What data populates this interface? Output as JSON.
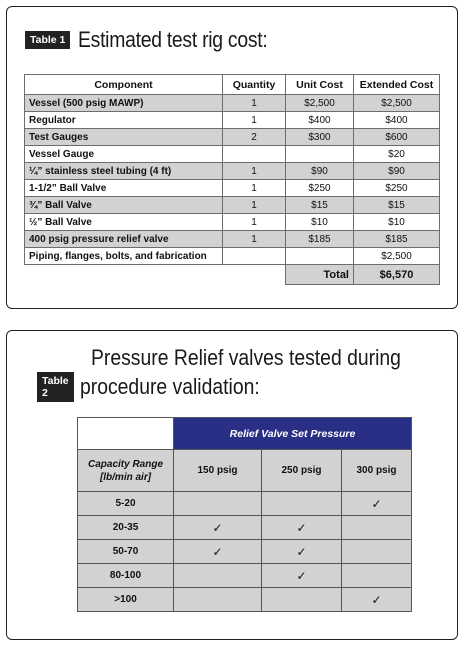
{
  "table1": {
    "tag": "Table 1",
    "title": "Estimated test rig cost:",
    "headers": [
      "Component",
      "Quantity",
      "Unit Cost",
      "Extended Cost"
    ],
    "rows": [
      {
        "component": "Vessel (500 psig MAWP)",
        "quantity": "1",
        "unit": "$2,500",
        "extended": "$2,500"
      },
      {
        "component": "Regulator",
        "quantity": "1",
        "unit": "$400",
        "extended": "$400"
      },
      {
        "component": "Test Gauges",
        "quantity": "2",
        "unit": "$300",
        "extended": "$600"
      },
      {
        "component": "Vessel Gauge",
        "quantity": "",
        "unit": "",
        "extended": "$20"
      },
      {
        "component": "¼” stainless steel tubing (4 ft)",
        "quantity": "1",
        "unit": "$90",
        "extended": "$90"
      },
      {
        "component": "1-1/2” Ball Valve",
        "quantity": "1",
        "unit": "$250",
        "extended": "$250"
      },
      {
        "component": "¾” Ball Valve",
        "quantity": "1",
        "unit": "$15",
        "extended": "$15"
      },
      {
        "component": "½” Ball Valve",
        "quantity": "1",
        "unit": "$10",
        "extended": "$10"
      },
      {
        "component": "400 psig pressure relief valve",
        "quantity": "1",
        "unit": "$185",
        "extended": "$185"
      },
      {
        "component": "Piping, flanges, bolts, and fabrication",
        "quantity": "",
        "unit": "",
        "extended": "$2,500"
      }
    ],
    "total_label": "Total",
    "total_value": "$6,570"
  },
  "table2": {
    "tag": "Table 2",
    "title_line1": "Pressure Relief valves tested during",
    "title_line2": "procedure validation:",
    "banner": "Relief Valve Set Pressure",
    "capacity_header_line1": "Capacity Range",
    "capacity_header_line2": "[lb/min air]",
    "pressures": [
      "150 psig",
      "250 psig",
      "300 psig"
    ],
    "check_mark": "✓",
    "rows": [
      {
        "range": "5-20",
        "checks": [
          false,
          false,
          true
        ]
      },
      {
        "range": "20-35",
        "checks": [
          true,
          true,
          false
        ]
      },
      {
        "range": "50-70",
        "checks": [
          true,
          true,
          false
        ]
      },
      {
        "range": "80-100",
        "checks": [
          false,
          true,
          false
        ]
      },
      {
        "range": ">100",
        "checks": [
          false,
          false,
          true
        ]
      }
    ]
  }
}
